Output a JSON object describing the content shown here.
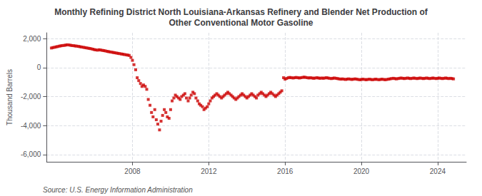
{
  "chart_data": {
    "type": "scatter",
    "title": "Monthly Refining District North Louisiana-Arkansas Refinery and Blender Net Production of\nOther Conventional Motor Gasoline",
    "ylabel": "Thousand Barrels",
    "annotations": [
      "Source: U.S. Energy Information Administration"
    ],
    "color": "#cc0000",
    "marker": "square",
    "grid": true,
    "xlim": [
      2003.5,
      2025.5
    ],
    "xticks": [
      2008,
      2012,
      2016,
      2020,
      2024
    ],
    "ylim": [
      -6500,
      2400
    ],
    "yticks": [
      {
        "value": -6000,
        "label": "-6,000"
      },
      {
        "value": -4000,
        "label": "-4,000"
      },
      {
        "value": -2000,
        "label": "-2,000"
      },
      0,
      {
        "value": 2000,
        "label": "2,000"
      }
    ],
    "x": [
      2003.75,
      2003.83,
      2003.92,
      2004.0,
      2004.08,
      2004.17,
      2004.25,
      2004.33,
      2004.42,
      2004.5,
      2004.58,
      2004.67,
      2004.75,
      2004.83,
      2004.92,
      2005.0,
      2005.08,
      2005.17,
      2005.25,
      2005.33,
      2005.42,
      2005.5,
      2005.58,
      2005.67,
      2005.75,
      2005.83,
      2005.92,
      2006.0,
      2006.08,
      2006.17,
      2006.25,
      2006.33,
      2006.42,
      2006.5,
      2006.58,
      2006.67,
      2006.75,
      2006.83,
      2006.92,
      2007.0,
      2007.08,
      2007.17,
      2007.25,
      2007.33,
      2007.42,
      2007.5,
      2007.58,
      2007.67,
      2007.75,
      2007.83,
      2007.92,
      2008.0,
      2008.08,
      2008.17,
      2008.25,
      2008.33,
      2008.42,
      2008.5,
      2008.58,
      2008.67,
      2008.75,
      2008.83,
      2008.92,
      2009.0,
      2009.08,
      2009.17,
      2009.25,
      2009.33,
      2009.42,
      2009.5,
      2009.58,
      2009.67,
      2009.75,
      2009.83,
      2009.92,
      2010.0,
      2010.08,
      2010.17,
      2010.25,
      2010.33,
      2010.42,
      2010.5,
      2010.58,
      2010.67,
      2010.75,
      2010.83,
      2010.92,
      2011.0,
      2011.08,
      2011.17,
      2011.25,
      2011.33,
      2011.42,
      2011.5,
      2011.58,
      2011.67,
      2011.75,
      2011.83,
      2011.92,
      2012.0,
      2012.08,
      2012.17,
      2012.25,
      2012.33,
      2012.42,
      2012.5,
      2012.58,
      2012.67,
      2012.75,
      2012.83,
      2012.92,
      2013.0,
      2013.08,
      2013.17,
      2013.25,
      2013.33,
      2013.42,
      2013.5,
      2013.58,
      2013.67,
      2013.75,
      2013.83,
      2013.92,
      2014.0,
      2014.08,
      2014.17,
      2014.25,
      2014.33,
      2014.42,
      2014.5,
      2014.58,
      2014.67,
      2014.75,
      2014.83,
      2014.92,
      2015.0,
      2015.08,
      2015.17,
      2015.25,
      2015.33,
      2015.42,
      2015.5,
      2015.58,
      2015.67,
      2015.75,
      2015.83,
      2015.92,
      2016.0,
      2016.08,
      2016.17,
      2016.25,
      2016.33,
      2016.42,
      2016.5,
      2016.58,
      2016.67,
      2016.75,
      2016.83,
      2016.92,
      2017.0,
      2017.08,
      2017.17,
      2017.25,
      2017.33,
      2017.42,
      2017.5,
      2017.58,
      2017.67,
      2017.75,
      2017.83,
      2017.92,
      2018.0,
      2018.08,
      2018.17,
      2018.25,
      2018.33,
      2018.42,
      2018.5,
      2018.58,
      2018.67,
      2018.75,
      2018.83,
      2018.92,
      2019.0,
      2019.08,
      2019.17,
      2019.25,
      2019.33,
      2019.42,
      2019.5,
      2019.58,
      2019.67,
      2019.75,
      2019.83,
      2019.92,
      2020.0,
      2020.08,
      2020.17,
      2020.25,
      2020.33,
      2020.42,
      2020.5,
      2020.58,
      2020.67,
      2020.75,
      2020.83,
      2020.92,
      2021.0,
      2021.08,
      2021.17,
      2021.25,
      2021.33,
      2021.42,
      2021.5,
      2021.58,
      2021.67,
      2021.75,
      2021.83,
      2021.92,
      2022.0,
      2022.08,
      2022.17,
      2022.25,
      2022.33,
      2022.42,
      2022.5,
      2022.58,
      2022.67,
      2022.75,
      2022.83,
      2022.92,
      2023.0,
      2023.08,
      2023.17,
      2023.25,
      2023.33,
      2023.42,
      2023.5,
      2023.58,
      2023.67,
      2023.75,
      2023.83,
      2023.92,
      2024.0,
      2024.08,
      2024.17,
      2024.25,
      2024.33,
      2024.42,
      2024.5,
      2024.58,
      2024.67,
      2024.75,
      2024.83
    ],
    "values": [
      1350,
      1380,
      1400,
      1430,
      1450,
      1480,
      1500,
      1520,
      1530,
      1550,
      1570,
      1560,
      1540,
      1520,
      1510,
      1490,
      1480,
      1460,
      1440,
      1420,
      1400,
      1380,
      1360,
      1340,
      1320,
      1300,
      1270,
      1240,
      1220,
      1200,
      1230,
      1210,
      1190,
      1170,
      1150,
      1120,
      1100,
      1080,
      1060,
      1040,
      1020,
      1000,
      980,
      960,
      940,
      920,
      900,
      880,
      860,
      840,
      700,
      500,
      200,
      -150,
      -700,
      -900,
      -1100,
      -1300,
      -1200,
      -1300,
      -1500,
      -2200,
      -2600,
      -3100,
      -3400,
      -2900,
      -3600,
      -3900,
      -4300,
      -3700,
      -3300,
      -2900,
      -3100,
      -3400,
      -3500,
      -2900,
      -2300,
      -2100,
      -1900,
      -2000,
      -2100,
      -2200,
      -2000,
      -1900,
      -1800,
      -2100,
      -2300,
      -2100,
      -1900,
      -1700,
      -1800,
      -2100,
      -2300,
      -2500,
      -2600,
      -2700,
      -2900,
      -2800,
      -2700,
      -2500,
      -2300,
      -2100,
      -2000,
      -1900,
      -1800,
      -1900,
      -2000,
      -2100,
      -2000,
      -1900,
      -1800,
      -1700,
      -1800,
      -1900,
      -2000,
      -2100,
      -2200,
      -2100,
      -2000,
      -1900,
      -1800,
      -1900,
      -2000,
      -2100,
      -2000,
      -1900,
      -1800,
      -1900,
      -2000,
      -2100,
      -1900,
      -1800,
      -1700,
      -1800,
      -1900,
      -2000,
      -1900,
      -1800,
      -1700,
      -1800,
      -1900,
      -2000,
      -1900,
      -1800,
      -1700,
      -1600,
      -700,
      -800,
      -750,
      -700,
      -680,
      -700,
      -720,
      -700,
      -680,
      -700,
      -720,
      -700,
      -680,
      -660,
      -680,
      -700,
      -720,
      -700,
      -720,
      -740,
      -720,
      -700,
      -720,
      -740,
      -720,
      -740,
      -720,
      -700,
      -720,
      -740,
      -760,
      -740,
      -720,
      -740,
      -760,
      -780,
      -800,
      -780,
      -800,
      -820,
      -800,
      -780,
      -800,
      -820,
      -800,
      -780,
      -800,
      -820,
      -840,
      -820,
      -800,
      -820,
      -840,
      -820,
      -800,
      -820,
      -840,
      -820,
      -800,
      -820,
      -840,
      -820,
      -800,
      -820,
      -840,
      -820,
      -800,
      -780,
      -760,
      -740,
      -760,
      -780,
      -760,
      -740,
      -720,
      -740,
      -760,
      -740,
      -720,
      -740,
      -760,
      -740,
      -720,
      -740,
      -760,
      -740,
      -720,
      -740,
      -760,
      -740,
      -720,
      -740,
      -760,
      -740,
      -720,
      -740,
      -760,
      -740,
      -720,
      -740,
      -760,
      -740,
      -720,
      -740,
      -760,
      -740,
      -760,
      -780
    ]
  }
}
